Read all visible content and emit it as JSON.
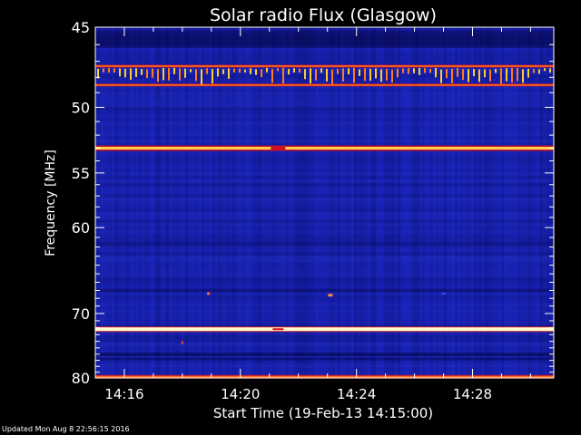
{
  "updated_text": "Updated Mon Aug  8 22:56:15 2016",
  "chart_data": {
    "type": "heatmap",
    "title": "Solar radio Flux (Glasgow)",
    "xlabel": "Start Time (19-Feb-13 14:15:00)",
    "ylabel": "Frequency [MHz]",
    "x_range_minutes": [
      14.25,
      14.5
    ],
    "x_ticks": [
      {
        "label": "14:16",
        "value": 16
      },
      {
        "label": "14:20",
        "value": 20
      },
      {
        "label": "14:24",
        "value": 24
      },
      {
        "label": "14:28",
        "value": 28
      }
    ],
    "y_scale": "reciprocal",
    "ylim": [
      45,
      80
    ],
    "y_ticks": [
      {
        "label": "45",
        "value": 45
      },
      {
        "label": "50",
        "value": 50
      },
      {
        "label": "55",
        "value": 55
      },
      {
        "label": "60",
        "value": 60
      },
      {
        "label": "70",
        "value": 70
      },
      {
        "label": "80",
        "value": 80
      }
    ],
    "bands": [
      {
        "freq": 47.3,
        "intensity": 0.75
      },
      {
        "freq": 48.5,
        "intensity": 0.7
      },
      {
        "freq": 53.0,
        "intensity": 0.95
      },
      {
        "freq": 72.2,
        "intensity": 1.0
      },
      {
        "freq": 79.8,
        "intensity": 0.85
      }
    ],
    "colors": {
      "background": "#000000",
      "plot_base": "#1a24b8",
      "band_hot": "#ffffd0",
      "band_warm": "#ff6a1a",
      "band_edge": "#c0142a",
      "axis": "#ffffff"
    }
  }
}
